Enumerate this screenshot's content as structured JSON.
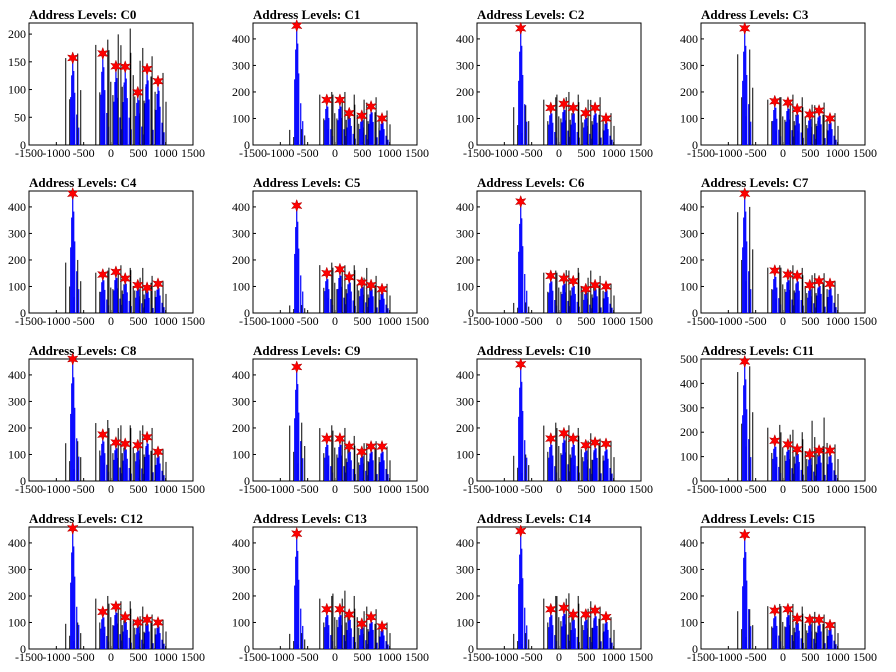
{
  "figure": {
    "marker_color": "#ff0000",
    "blue_color": "#0000ff",
    "black_color": "#000000",
    "marker": "star"
  },
  "chart_data": [
    {
      "title": "Address Levels: C0",
      "type": "bar",
      "xlim": [
        -1500,
        1500
      ],
      "ylim": [
        0,
        220
      ],
      "xticks": [
        "-1500",
        "-1000",
        "-500",
        "0",
        "500",
        "1000",
        "1500"
      ],
      "yticks": [
        "0",
        "50",
        "100",
        "150",
        "200"
      ],
      "peaks_x": [
        -700,
        -150,
        90,
        260,
        490,
        660,
        860
      ],
      "peaks_y": [
        157,
        165,
        142,
        141,
        95,
        137,
        115
      ],
      "black_max": [
        165,
        190,
        180,
        210,
        175,
        160,
        130
      ]
    },
    {
      "title": "Address Levels: C1",
      "type": "bar",
      "xlim": [
        -1500,
        1500
      ],
      "ylim": [
        0,
        460
      ],
      "xticks": [
        "-1500",
        "-1000",
        "-500",
        "0",
        "500",
        "1000",
        "1500"
      ],
      "yticks": [
        "0",
        "100",
        "200",
        "300",
        "400"
      ],
      "peaks_x": [
        -700,
        -150,
        90,
        260,
        490,
        660,
        860
      ],
      "peaks_y": [
        450,
        170,
        170,
        120,
        110,
        145,
        100
      ],
      "black_max": [
        60,
        200,
        200,
        190,
        160,
        180,
        130
      ]
    },
    {
      "title": "Address Levels: C2",
      "type": "bar",
      "xlim": [
        -1500,
        1500
      ],
      "ylim": [
        0,
        460
      ],
      "xticks": [
        "-1500",
        "-1000",
        "-500",
        "0",
        "500",
        "1000",
        "1500"
      ],
      "yticks": [
        "0",
        "100",
        "200",
        "300",
        "400"
      ],
      "peaks_x": [
        -700,
        -150,
        90,
        260,
        490,
        660,
        860
      ],
      "peaks_y": [
        440,
        140,
        155,
        140,
        120,
        140,
        100
      ],
      "black_max": [
        150,
        180,
        200,
        190,
        170,
        180,
        120
      ]
    },
    {
      "title": "Address Levels: C3",
      "type": "bar",
      "xlim": [
        -1500,
        1500
      ],
      "ylim": [
        0,
        460
      ],
      "xticks": [
        "-1500",
        "-1000",
        "-500",
        "0",
        "500",
        "1000",
        "1500"
      ],
      "yticks": [
        "0",
        "100",
        "200",
        "300",
        "400"
      ],
      "peaks_x": [
        -700,
        -150,
        90,
        260,
        490,
        660,
        860
      ],
      "peaks_y": [
        440,
        165,
        160,
        135,
        115,
        130,
        100
      ],
      "black_max": [
        360,
        180,
        190,
        180,
        150,
        160,
        120
      ]
    },
    {
      "title": "Address Levels: C4",
      "type": "bar",
      "xlim": [
        -1500,
        1500
      ],
      "ylim": [
        0,
        460
      ],
      "xticks": [
        "-1500",
        "-1000",
        "-500",
        "0",
        "500",
        "1000",
        "1500"
      ],
      "yticks": [
        "0",
        "100",
        "200",
        "300",
        "400"
      ],
      "peaks_x": [
        -700,
        -150,
        90,
        260,
        490,
        660,
        860
      ],
      "peaks_y": [
        450,
        145,
        155,
        130,
        105,
        95,
        110
      ],
      "black_max": [
        200,
        160,
        180,
        170,
        170,
        140,
        120
      ]
    },
    {
      "title": "Address Levels: C5",
      "type": "bar",
      "xlim": [
        -1500,
        1500
      ],
      "ylim": [
        0,
        460
      ],
      "xticks": [
        "-1500",
        "-1000",
        "-500",
        "0",
        "500",
        "1000",
        "1500"
      ],
      "yticks": [
        "0",
        "100",
        "200",
        "300",
        "400"
      ],
      "peaks_x": [
        -700,
        -150,
        90,
        260,
        490,
        660,
        860
      ],
      "peaks_y": [
        405,
        150,
        165,
        135,
        115,
        105,
        90
      ],
      "black_max": [
        30,
        190,
        180,
        180,
        170,
        140,
        110
      ]
    },
    {
      "title": "Address Levels: C6",
      "type": "bar",
      "xlim": [
        -1500,
        1500
      ],
      "ylim": [
        0,
        460
      ],
      "xticks": [
        "-1500",
        "-1000",
        "-500",
        "0",
        "500",
        "1000",
        "1500"
      ],
      "yticks": [
        "0",
        "100",
        "200",
        "300",
        "400"
      ],
      "peaks_x": [
        -700,
        -150,
        90,
        260,
        490,
        660,
        860
      ],
      "peaks_y": [
        420,
        140,
        130,
        120,
        90,
        105,
        100
      ],
      "black_max": [
        40,
        160,
        160,
        170,
        160,
        140,
        110
      ]
    },
    {
      "title": "Address Levels: C7",
      "type": "bar",
      "xlim": [
        -1500,
        1500
      ],
      "ylim": [
        0,
        460
      ],
      "xticks": [
        "-1500",
        "-1000",
        "-500",
        "0",
        "500",
        "1000",
        "1500"
      ],
      "yticks": [
        "0",
        "100",
        "200",
        "300",
        "400"
      ],
      "peaks_x": [
        -700,
        -150,
        90,
        260,
        490,
        660,
        860
      ],
      "peaks_y": [
        450,
        160,
        145,
        140,
        105,
        120,
        110
      ],
      "black_max": [
        400,
        180,
        180,
        170,
        150,
        150,
        120
      ]
    },
    {
      "title": "Address Levels: C8",
      "type": "bar",
      "xlim": [
        -1500,
        1500
      ],
      "ylim": [
        0,
        460
      ],
      "xticks": [
        "-1500",
        "-1000",
        "-500",
        "0",
        "500",
        "1000",
        "1500"
      ],
      "yticks": [
        "0",
        "100",
        "200",
        "300",
        "400"
      ],
      "peaks_x": [
        -700,
        -150,
        90,
        260,
        490,
        660,
        860
      ],
      "peaks_y": [
        460,
        175,
        145,
        140,
        135,
        165,
        110
      ],
      "black_max": [
        150,
        230,
        210,
        210,
        210,
        200,
        120
      ]
    },
    {
      "title": "Address Levels: C9",
      "type": "bar",
      "xlim": [
        -1500,
        1500
      ],
      "ylim": [
        0,
        460
      ],
      "xticks": [
        "-1500",
        "-1000",
        "-500",
        "0",
        "500",
        "1000",
        "1500"
      ],
      "yticks": [
        "0",
        "100",
        "200",
        "300",
        "400"
      ],
      "peaks_x": [
        -700,
        -150,
        90,
        260,
        490,
        660,
        860
      ],
      "peaks_y": [
        430,
        160,
        160,
        130,
        110,
        130,
        130
      ],
      "black_max": [
        220,
        210,
        200,
        170,
        140,
        150,
        130
      ]
    },
    {
      "title": "Address Levels: C10",
      "type": "bar",
      "xlim": [
        -1500,
        1500
      ],
      "ylim": [
        0,
        460
      ],
      "xticks": [
        "-1500",
        "-1000",
        "-500",
        "0",
        "500",
        "1000",
        "1500"
      ],
      "yticks": [
        "0",
        "100",
        "200",
        "300",
        "400"
      ],
      "peaks_x": [
        -700,
        -150,
        90,
        260,
        490,
        660,
        860
      ],
      "peaks_y": [
        440,
        160,
        180,
        160,
        135,
        145,
        140
      ],
      "black_max": [
        100,
        220,
        210,
        200,
        180,
        160,
        150
      ]
    },
    {
      "title": "Address Levels: C11",
      "type": "bar",
      "xlim": [
        -1500,
        1500
      ],
      "ylim": [
        0,
        500
      ],
      "xticks": [
        "-1500",
        "-1000",
        "-500",
        "0",
        "500",
        "1000",
        "1500"
      ],
      "yticks": [
        "0",
        "100",
        "200",
        "300",
        "400",
        "500"
      ],
      "peaks_x": [
        -700,
        -150,
        90,
        260,
        490,
        660,
        860
      ],
      "peaks_y": [
        490,
        165,
        150,
        130,
        110,
        125,
        125
      ],
      "black_max": [
        470,
        230,
        210,
        200,
        180,
        260,
        150
      ]
    },
    {
      "title": "Address Levels: C12",
      "type": "bar",
      "xlim": [
        -1500,
        1500
      ],
      "ylim": [
        0,
        460
      ],
      "xticks": [
        "-1500",
        "-1000",
        "-500",
        "0",
        "500",
        "1000",
        "1500"
      ],
      "yticks": [
        "0",
        "100",
        "200",
        "300",
        "400"
      ],
      "peaks_x": [
        -700,
        -150,
        90,
        260,
        490,
        660,
        860
      ],
      "peaks_y": [
        455,
        140,
        160,
        120,
        100,
        110,
        100
      ],
      "black_max": [
        100,
        200,
        180,
        180,
        160,
        130,
        110
      ]
    },
    {
      "title": "Address Levels: C13",
      "type": "bar",
      "xlim": [
        -1500,
        1500
      ],
      "ylim": [
        0,
        460
      ],
      "xticks": [
        "-1500",
        "-1000",
        "-500",
        "0",
        "500",
        "1000",
        "1500"
      ],
      "yticks": [
        "0",
        "100",
        "200",
        "300",
        "400"
      ],
      "peaks_x": [
        -700,
        -150,
        90,
        260,
        490,
        660,
        860
      ],
      "peaks_y": [
        435,
        150,
        150,
        130,
        95,
        120,
        85
      ],
      "black_max": [
        60,
        200,
        220,
        200,
        160,
        150,
        100
      ]
    },
    {
      "title": "Address Levels: C14",
      "type": "bar",
      "xlim": [
        -1500,
        1500
      ],
      "ylim": [
        0,
        460
      ],
      "xticks": [
        "-1500",
        "-1000",
        "-500",
        "0",
        "500",
        "1000",
        "1500"
      ],
      "yticks": [
        "0",
        "100",
        "200",
        "300",
        "400"
      ],
      "peaks_x": [
        -700,
        -150,
        90,
        260,
        490,
        660,
        860
      ],
      "peaks_y": [
        445,
        150,
        155,
        130,
        130,
        145,
        120
      ],
      "black_max": [
        60,
        200,
        210,
        200,
        180,
        160,
        120
      ]
    },
    {
      "title": "Address Levels: C15",
      "type": "bar",
      "xlim": [
        -1500,
        1500
      ],
      "ylim": [
        0,
        460
      ],
      "xticks": [
        "-1500",
        "-1000",
        "-500",
        "0",
        "500",
        "1000",
        "1500"
      ],
      "yticks": [
        "0",
        "100",
        "200",
        "300",
        "400"
      ],
      "peaks_x": [
        -700,
        -150,
        90,
        260,
        490,
        660,
        860
      ],
      "peaks_y": [
        430,
        145,
        150,
        115,
        110,
        110,
        90
      ],
      "black_max": [
        150,
        170,
        170,
        160,
        140,
        130,
        100
      ]
    }
  ]
}
